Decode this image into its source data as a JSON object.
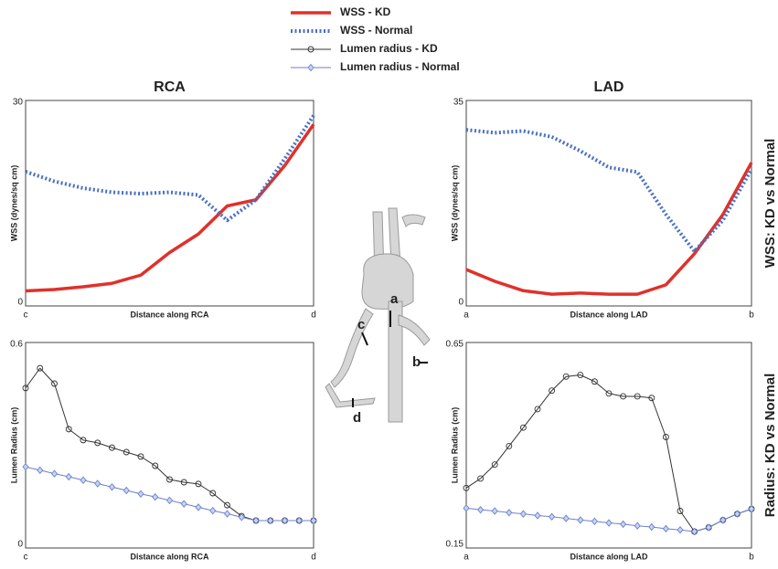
{
  "chart_data": [
    {
      "type": "line",
      "title": "RCA",
      "xlabel": "Distance along RCA",
      "ylabel": "WSS (dynes/sq cm)",
      "x": [
        0,
        0.1,
        0.2,
        0.3,
        0.4,
        0.5,
        0.6,
        0.7,
        0.8,
        0.9,
        1
      ],
      "xlim": [
        0,
        1
      ],
      "xticks": [
        {
          "value": 0,
          "label": "c"
        },
        {
          "value": 1,
          "label": "d"
        }
      ],
      "ylim": [
        0,
        30
      ],
      "yticks": [
        0,
        30
      ],
      "series": [
        {
          "name": "WSS - KD",
          "color": "#e0312b",
          "style": "solid",
          "values": [
            2.2,
            2.4,
            2.8,
            3.3,
            4.5,
            7.8,
            10.5,
            14.6,
            15.5,
            20.5,
            26.5
          ]
        },
        {
          "name": "WSS - Normal",
          "color": "#4a6fc4",
          "style": "dotted",
          "values": [
            19.6,
            18.2,
            17.2,
            16.6,
            16.4,
            16.6,
            16.2,
            12.5,
            15.5,
            21.5,
            27.8
          ]
        }
      ]
    },
    {
      "type": "line",
      "title": "LAD",
      "side_label": "WSS: KD vs Normal",
      "xlabel": "Distance along LAD",
      "ylabel": "WSS (dynes/sq cm)",
      "x": [
        0,
        0.1,
        0.2,
        0.3,
        0.4,
        0.5,
        0.6,
        0.7,
        0.8,
        0.9,
        1
      ],
      "xlim": [
        0,
        1
      ],
      "xticks": [
        {
          "value": 0,
          "label": "a"
        },
        {
          "value": 1,
          "label": "b"
        }
      ],
      "ylim": [
        0,
        35
      ],
      "yticks": [
        0,
        35
      ],
      "series": [
        {
          "color": "#e0312b",
          "style": "solid",
          "values": [
            6.2,
            4.2,
            2.6,
            2.0,
            2.2,
            2.0,
            2.0,
            3.6,
            8.9,
            15.6,
            24.4
          ]
        },
        {
          "color": "#4a6fc4",
          "style": "dotted",
          "values": [
            30,
            29.5,
            29.8,
            28.8,
            26.4,
            23.6,
            22.8,
            15.6,
            9.3,
            14.6,
            23.3
          ]
        }
      ]
    },
    {
      "type": "line",
      "xlabel": "Distance along RCA",
      "ylabel": "Lumen Radius (cm)",
      "x": [
        0,
        0.05,
        0.1,
        0.15,
        0.2,
        0.25,
        0.3,
        0.35,
        0.4,
        0.45,
        0.5,
        0.55,
        0.6,
        0.65,
        0.7,
        0.75,
        0.8,
        0.85,
        0.9,
        0.95,
        1
      ],
      "xlim": [
        0,
        1
      ],
      "xticks": [
        {
          "value": 0,
          "label": "c"
        },
        {
          "value": 1,
          "label": "d"
        }
      ],
      "ylim": [
        0,
        0.6
      ],
      "yticks": [
        0,
        0.6
      ],
      "series": [
        {
          "name": "Lumen radius - KD",
          "color": "#333333",
          "style": "thin",
          "marker": "circle",
          "values": [
            0.467,
            0.525,
            0.48,
            0.347,
            0.315,
            0.307,
            0.293,
            0.28,
            0.267,
            0.24,
            0.2,
            0.192,
            0.187,
            0.16,
            0.125,
            0.093,
            0.08,
            0.08,
            0.08,
            0.08,
            0.08
          ]
        },
        {
          "name": "Lumen radius - Normal",
          "color": "#6a82cc",
          "style": "thin",
          "marker": "diamond",
          "values": [
            0.237,
            0.227,
            0.217,
            0.208,
            0.198,
            0.188,
            0.178,
            0.168,
            0.158,
            0.149,
            0.139,
            0.129,
            0.119,
            0.109,
            0.1,
            0.09,
            0.08,
            0.08,
            0.08,
            0.08,
            0.08
          ]
        }
      ]
    },
    {
      "type": "line",
      "side_label": "Radius: KD vs Normal",
      "xlabel": "Distance along LAD",
      "ylabel": "Lumen Radius (cm)",
      "x": [
        0,
        0.05,
        0.1,
        0.15,
        0.2,
        0.25,
        0.3,
        0.35,
        0.4,
        0.45,
        0.5,
        0.55,
        0.6,
        0.65,
        0.7,
        0.75,
        0.8,
        0.85,
        0.9,
        0.95,
        1
      ],
      "xlim": [
        0,
        1
      ],
      "xticks": [
        {
          "value": 0,
          "label": "a"
        },
        {
          "value": 1,
          "label": "b"
        }
      ],
      "ylim": [
        0.15,
        0.65
      ],
      "yticks": [
        0.15,
        0.65
      ],
      "series": [
        {
          "color": "#333333",
          "style": "thin",
          "marker": "circle",
          "values": [
            0.296,
            0.319,
            0.353,
            0.398,
            0.443,
            0.488,
            0.533,
            0.567,
            0.571,
            0.555,
            0.526,
            0.519,
            0.519,
            0.515,
            0.42,
            0.24,
            0.19,
            0.2,
            0.218,
            0.233,
            0.245
          ]
        },
        {
          "color": "#6a82cc",
          "style": "thin",
          "marker": "diamond",
          "values": [
            0.247,
            0.243,
            0.24,
            0.236,
            0.233,
            0.229,
            0.226,
            0.222,
            0.218,
            0.215,
            0.211,
            0.208,
            0.204,
            0.201,
            0.197,
            0.194,
            0.19,
            0.2,
            0.218,
            0.233,
            0.245
          ]
        }
      ]
    }
  ],
  "anatomy_labels": [
    "a",
    "b",
    "c",
    "d"
  ]
}
